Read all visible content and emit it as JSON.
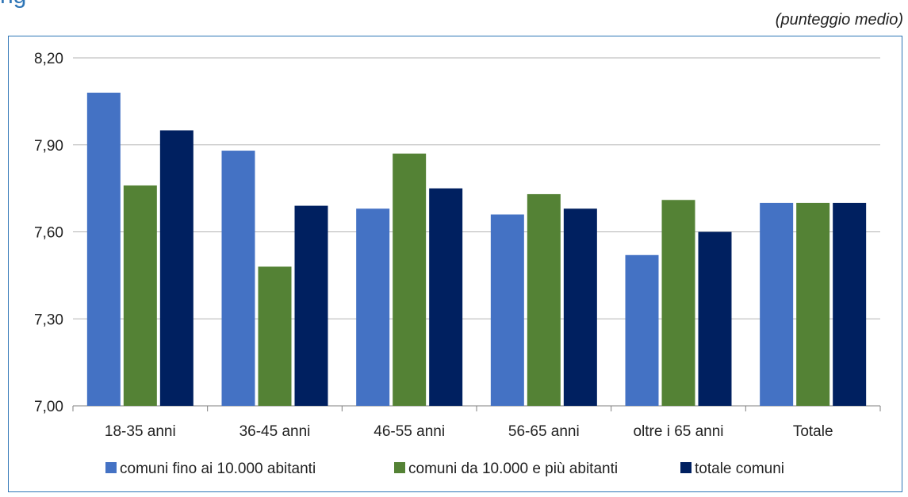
{
  "header": {
    "title_fragment": "ng",
    "unit_note": "(punteggio medio)"
  },
  "colors": {
    "series": [
      "#4472c4",
      "#548235",
      "#002060"
    ],
    "grid": "#b3b3b3",
    "frame": "#2e75b6",
    "title": "#2e75b6"
  },
  "chart_data": {
    "type": "bar",
    "categories": [
      "18-35 anni",
      "36-45 anni",
      "46-55 anni",
      "56-65 anni",
      "oltre i 65 anni",
      "Totale"
    ],
    "series": [
      {
        "name": "comuni fino ai 10.000 abitanti",
        "values": [
          8.08,
          7.88,
          7.68,
          7.66,
          7.52,
          7.7
        ]
      },
      {
        "name": "comuni da 10.000  e più abitanti",
        "values": [
          7.76,
          7.48,
          7.87,
          7.73,
          7.71,
          7.7
        ]
      },
      {
        "name": "totale comuni",
        "values": [
          7.95,
          7.69,
          7.75,
          7.68,
          7.6,
          7.7
        ]
      }
    ],
    "ylim": [
      7.0,
      8.2
    ],
    "yticks": [
      7.0,
      7.3,
      7.6,
      7.9,
      8.2
    ],
    "ytick_labels": [
      "7,00",
      "7,30",
      "7,60",
      "7,90",
      "8,20"
    ],
    "grid": true,
    "legend_position": "bottom",
    "title": "",
    "xlabel": "",
    "ylabel": ""
  }
}
